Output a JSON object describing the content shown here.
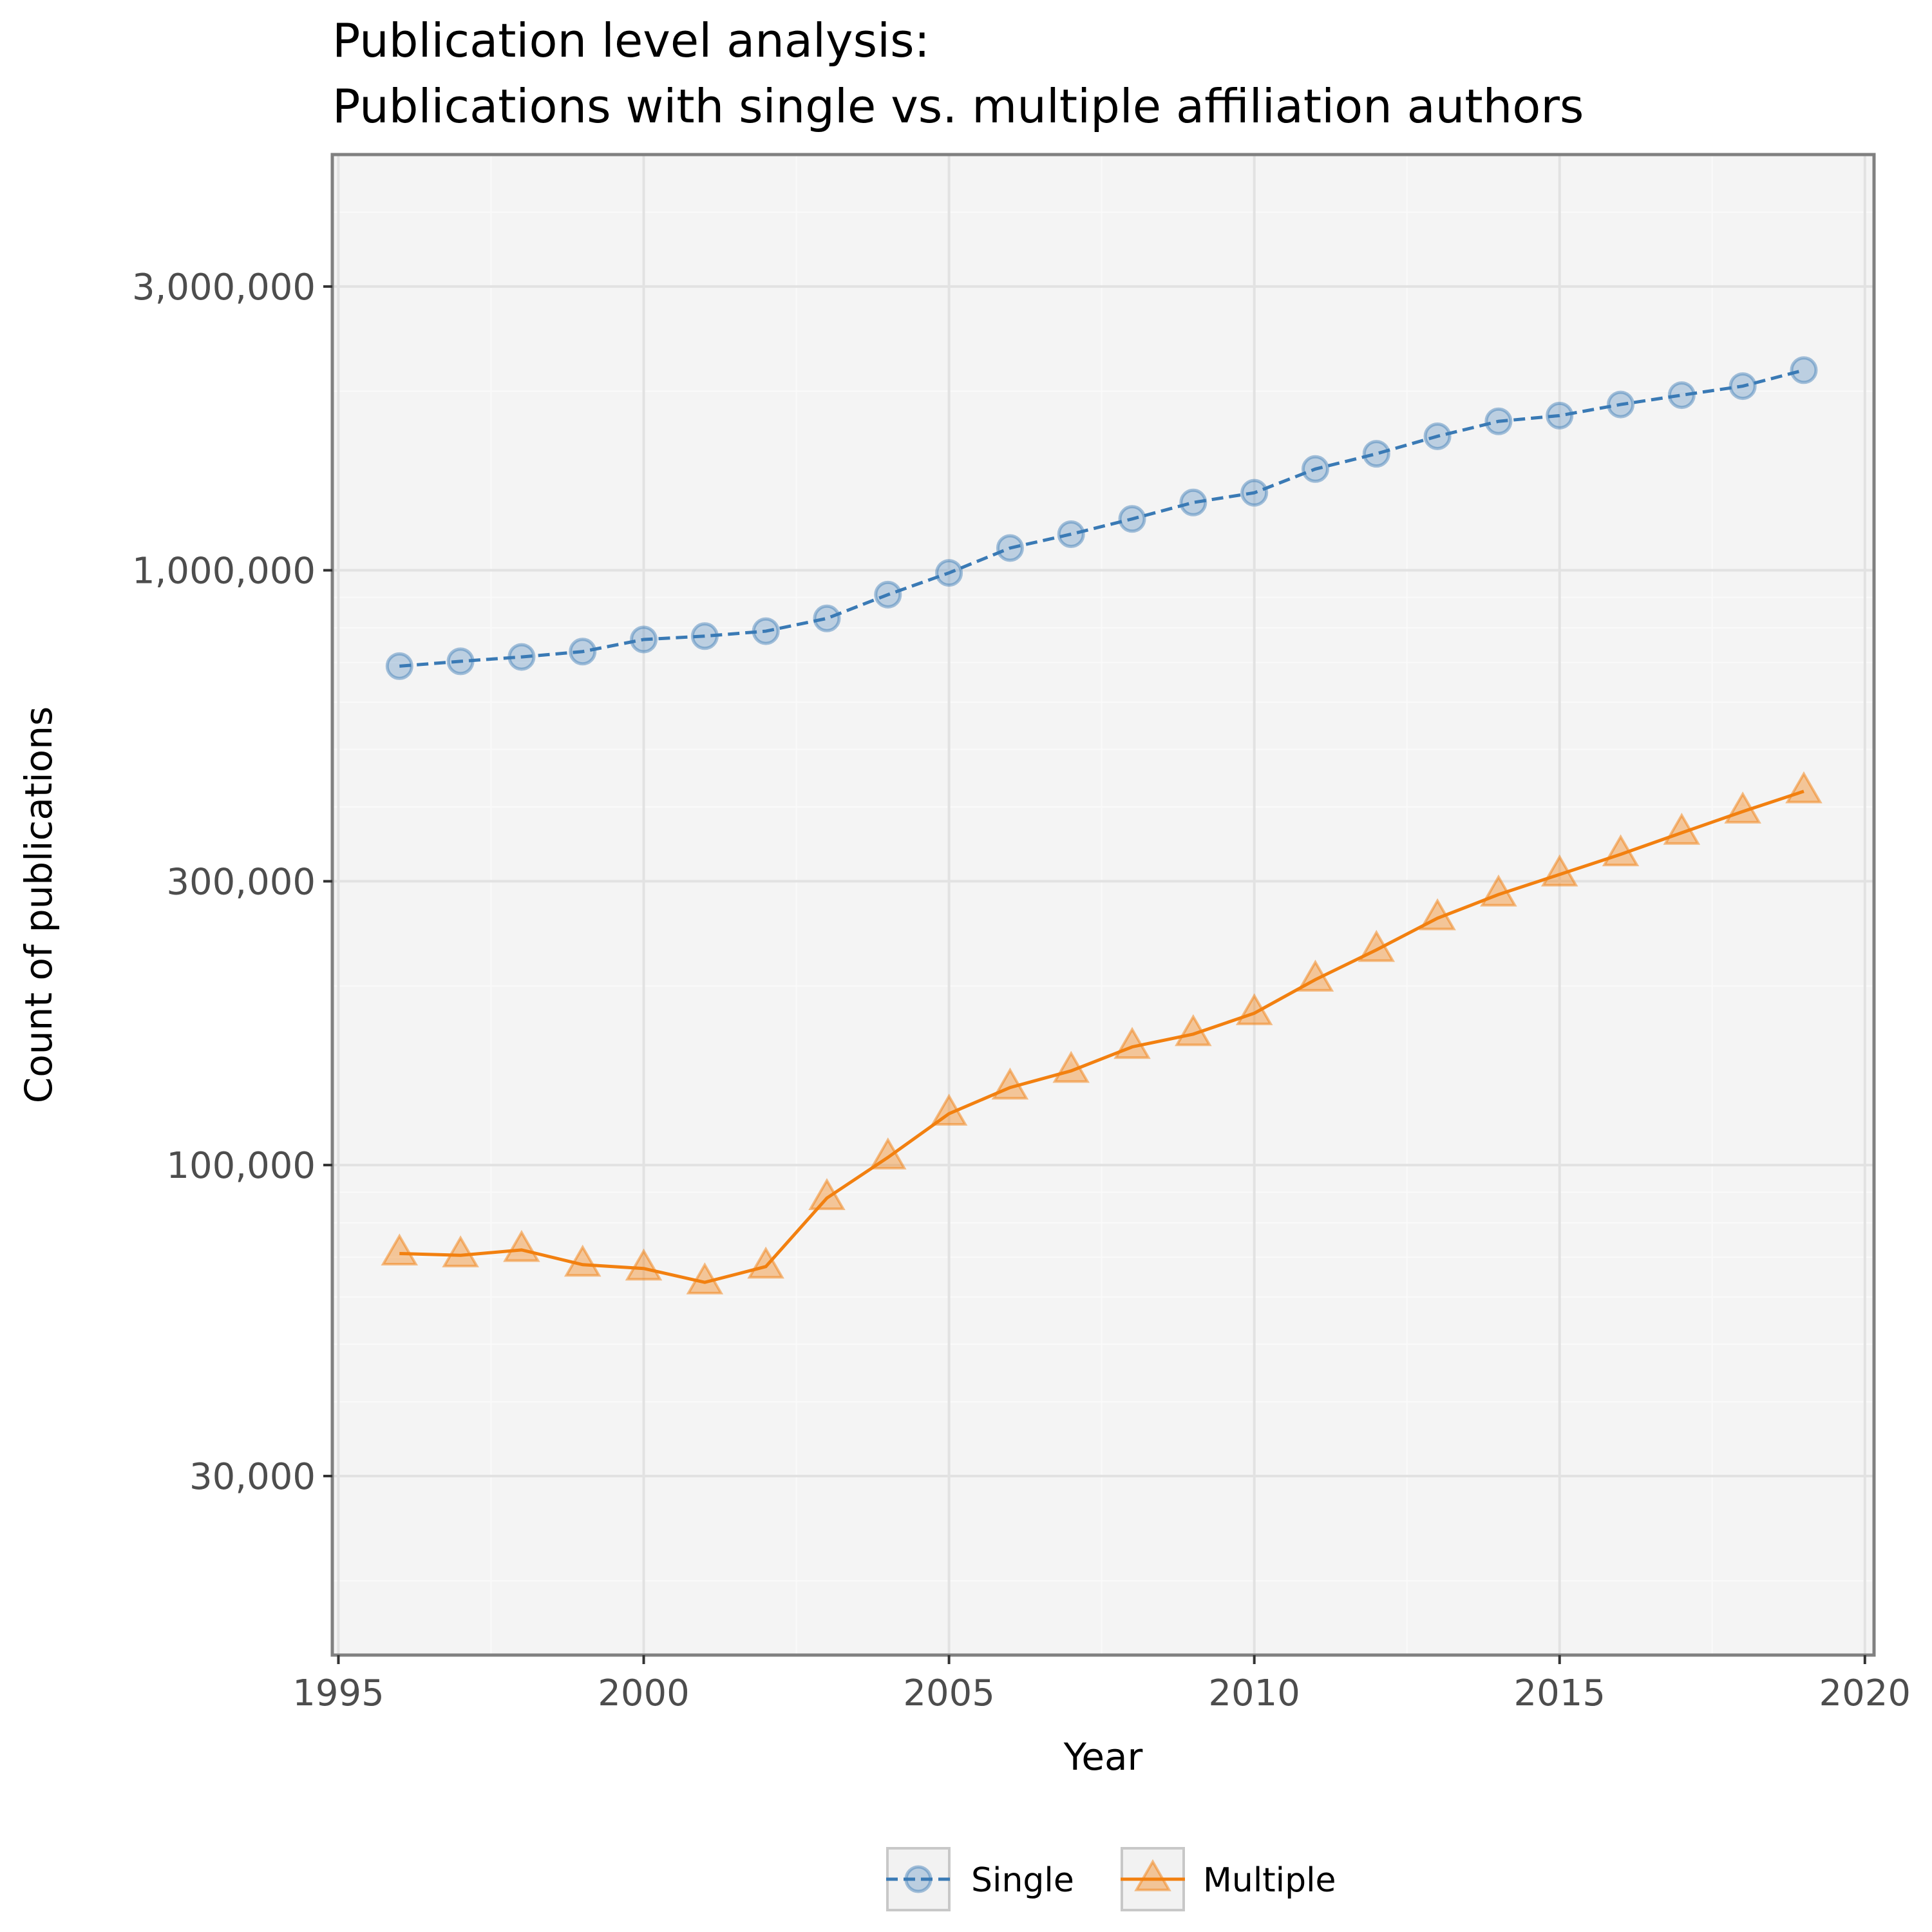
{
  "chart_data": {
    "type": "line",
    "title": "Publication level analysis:",
    "subtitle": "Publications with single vs. multiple affiliation authors",
    "xlabel": "Year",
    "ylabel": "Count of publications",
    "y_scale": "log",
    "xlim": [
      1995,
      2020
    ],
    "ylim": [
      15000,
      5000000
    ],
    "x_ticks": [
      1995,
      2000,
      2005,
      2010,
      2015,
      2020
    ],
    "x_tick_labels": [
      "1995",
      "2000",
      "2005",
      "2010",
      "2015",
      "2020"
    ],
    "y_ticks": [
      30000,
      100000,
      300000,
      1000000,
      3000000
    ],
    "y_tick_labels": [
      "30,000",
      "100,000",
      "300,000",
      "1,000,000",
      "3,000,000"
    ],
    "grid": true,
    "legend_position": "bottom",
    "x": [
      1996,
      1997,
      1998,
      1999,
      2000,
      2001,
      2002,
      2003,
      2004,
      2005,
      2006,
      2007,
      2008,
      2009,
      2010,
      2011,
      2012,
      2013,
      2014,
      2015,
      2016,
      2017,
      2018,
      2019
    ],
    "series": [
      {
        "name": "Single",
        "color": "#3a7ab5",
        "line_style": "dashed",
        "marker": "circle",
        "values": [
          690000,
          703000,
          715000,
          730000,
          765000,
          775000,
          790000,
          830000,
          910000,
          990000,
          1090000,
          1150000,
          1220000,
          1300000,
          1350000,
          1480000,
          1570000,
          1680000,
          1780000,
          1820000,
          1900000,
          1970000,
          2040000,
          2170000
        ]
      },
      {
        "name": "Multiple",
        "color": "#f28010",
        "line_style": "solid",
        "marker": "triangle",
        "values": [
          71000,
          70500,
          72000,
          68000,
          67000,
          63500,
          67500,
          88000,
          103000,
          122000,
          135000,
          144000,
          158000,
          166000,
          180000,
          205000,
          230000,
          260000,
          285000,
          308000,
          333000,
          362000,
          393000,
          425000
        ]
      }
    ]
  }
}
